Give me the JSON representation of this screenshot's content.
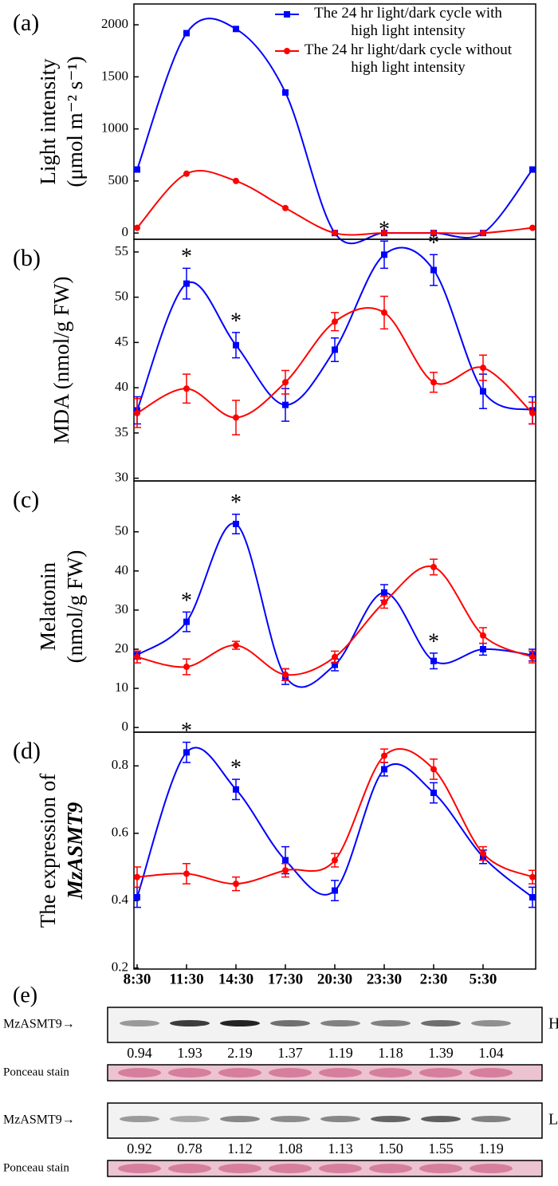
{
  "chart_data": [
    {
      "type": "line",
      "panel_label": "(a)",
      "ylabel": [
        "Light intensity",
        "(μmol m⁻² s⁻¹)"
      ],
      "ylim": [
        -60,
        2200
      ],
      "yticks": [
        0,
        500,
        1000,
        1500,
        2000
      ],
      "series": [
        {
          "name": "The 24 hr light/dark cycle with high light intensity",
          "color": "#0000ff",
          "marker": "square",
          "values": [
            610,
            1920,
            1960,
            1350,
            0,
            0,
            0,
            0,
            610
          ]
        },
        {
          "name": "The 24 hr light/dark cycle without high light intensity",
          "color": "#ff0000",
          "marker": "circle",
          "values": [
            50,
            570,
            500,
            240,
            0,
            0,
            0,
            0,
            50
          ]
        }
      ]
    },
    {
      "type": "line",
      "panel_label": "(b)",
      "ylabel": [
        "MDA (nmol/g FW)"
      ],
      "asterisk": "*",
      "ylim": [
        29.7,
        56.4
      ],
      "yticks": [
        30,
        35,
        40,
        45,
        50,
        55
      ],
      "series": [
        {
          "color": "#0000ff",
          "marker": "square",
          "values": [
            37.5,
            51.5,
            44.7,
            38.1,
            44.2,
            54.7,
            53,
            39.6,
            37.5
          ],
          "errors": [
            1.5,
            1.7,
            1.4,
            1.8,
            1.3,
            1.5,
            1.7,
            1.9,
            1.5
          ],
          "significant": [
            false,
            true,
            true,
            false,
            false,
            true,
            true,
            false,
            false
          ]
        },
        {
          "color": "#ff0000",
          "marker": "circle",
          "values": [
            37.2,
            39.9,
            36.7,
            40.6,
            47.3,
            48.3,
            40.6,
            42.2,
            37.2
          ],
          "errors": [
            1.6,
            1.6,
            1.9,
            1.3,
            1.0,
            1.8,
            1.1,
            1.4,
            1.2
          ]
        }
      ]
    },
    {
      "type": "line",
      "panel_label": "(c)",
      "ylabel": [
        "Melatonin",
        "(nmol/g FW)"
      ],
      "asterisk": "*",
      "ylim": [
        -1.2,
        63
      ],
      "yticks": [
        0,
        10,
        20,
        30,
        40,
        50
      ],
      "series": [
        {
          "color": "#0000ff",
          "marker": "square",
          "values": [
            18.5,
            27,
            52,
            13,
            16,
            34.5,
            17,
            20,
            18.5
          ],
          "errors": [
            1,
            2.5,
            2.5,
            2,
            1.5,
            2,
            2,
            1.5,
            1.5
          ],
          "significant": [
            false,
            true,
            true,
            false,
            false,
            false,
            true,
            false,
            false
          ]
        },
        {
          "color": "#ff0000",
          "marker": "circle",
          "values": [
            18,
            15.5,
            21,
            13.5,
            18,
            32,
            41,
            23.5,
            18
          ],
          "errors": [
            1.5,
            2,
            1,
            1.5,
            1.5,
            1.5,
            2,
            2,
            1.5
          ]
        }
      ]
    },
    {
      "type": "line",
      "panel_label": "(d)",
      "ylabel": [
        "The expression of",
        "MzASMT9"
      ],
      "asterisk": "*",
      "ylim": [
        0.197,
        0.9
      ],
      "yticks": [
        0.2,
        0.4,
        0.6,
        0.8
      ],
      "categories": [
        "8:30",
        "11:30",
        "14:30",
        "17:30",
        "20:30",
        "23:30",
        "2:30",
        "5:30",
        null
      ],
      "series": [
        {
          "color": "#0000ff",
          "marker": "square",
          "values": [
            0.41,
            0.84,
            0.73,
            0.52,
            0.43,
            0.79,
            0.72,
            0.53,
            0.41
          ],
          "errors": [
            0.03,
            0.03,
            0.03,
            0.04,
            0.03,
            0.02,
            0.03,
            0.02,
            0.03
          ],
          "significant": [
            false,
            true,
            true,
            false,
            false,
            false,
            false,
            false,
            false
          ]
        },
        {
          "color": "#ff0000",
          "marker": "circle",
          "values": [
            0.47,
            0.48,
            0.45,
            0.49,
            0.52,
            0.83,
            0.79,
            0.54,
            0.47
          ],
          "errors": [
            0.03,
            0.03,
            0.02,
            0.02,
            0.02,
            0.02,
            0.03,
            0.02,
            0.02
          ]
        }
      ]
    }
  ],
  "blots": {
    "panel_label": "(e)",
    "rows": [
      {
        "label": "MzASMT9→",
        "condition": "H",
        "values": [
          "0.94",
          "1.93",
          "2.19",
          "1.37",
          "1.19",
          "1.18",
          "1.39",
          "1.04"
        ],
        "stain": "Ponceau stain"
      },
      {
        "label": "MzASMT9→",
        "condition": "L",
        "values": [
          "0.92",
          "0.78",
          "1.12",
          "1.08",
          "1.13",
          "1.50",
          "1.55",
          "1.19"
        ],
        "stain": "Ponceau stain"
      }
    ]
  }
}
